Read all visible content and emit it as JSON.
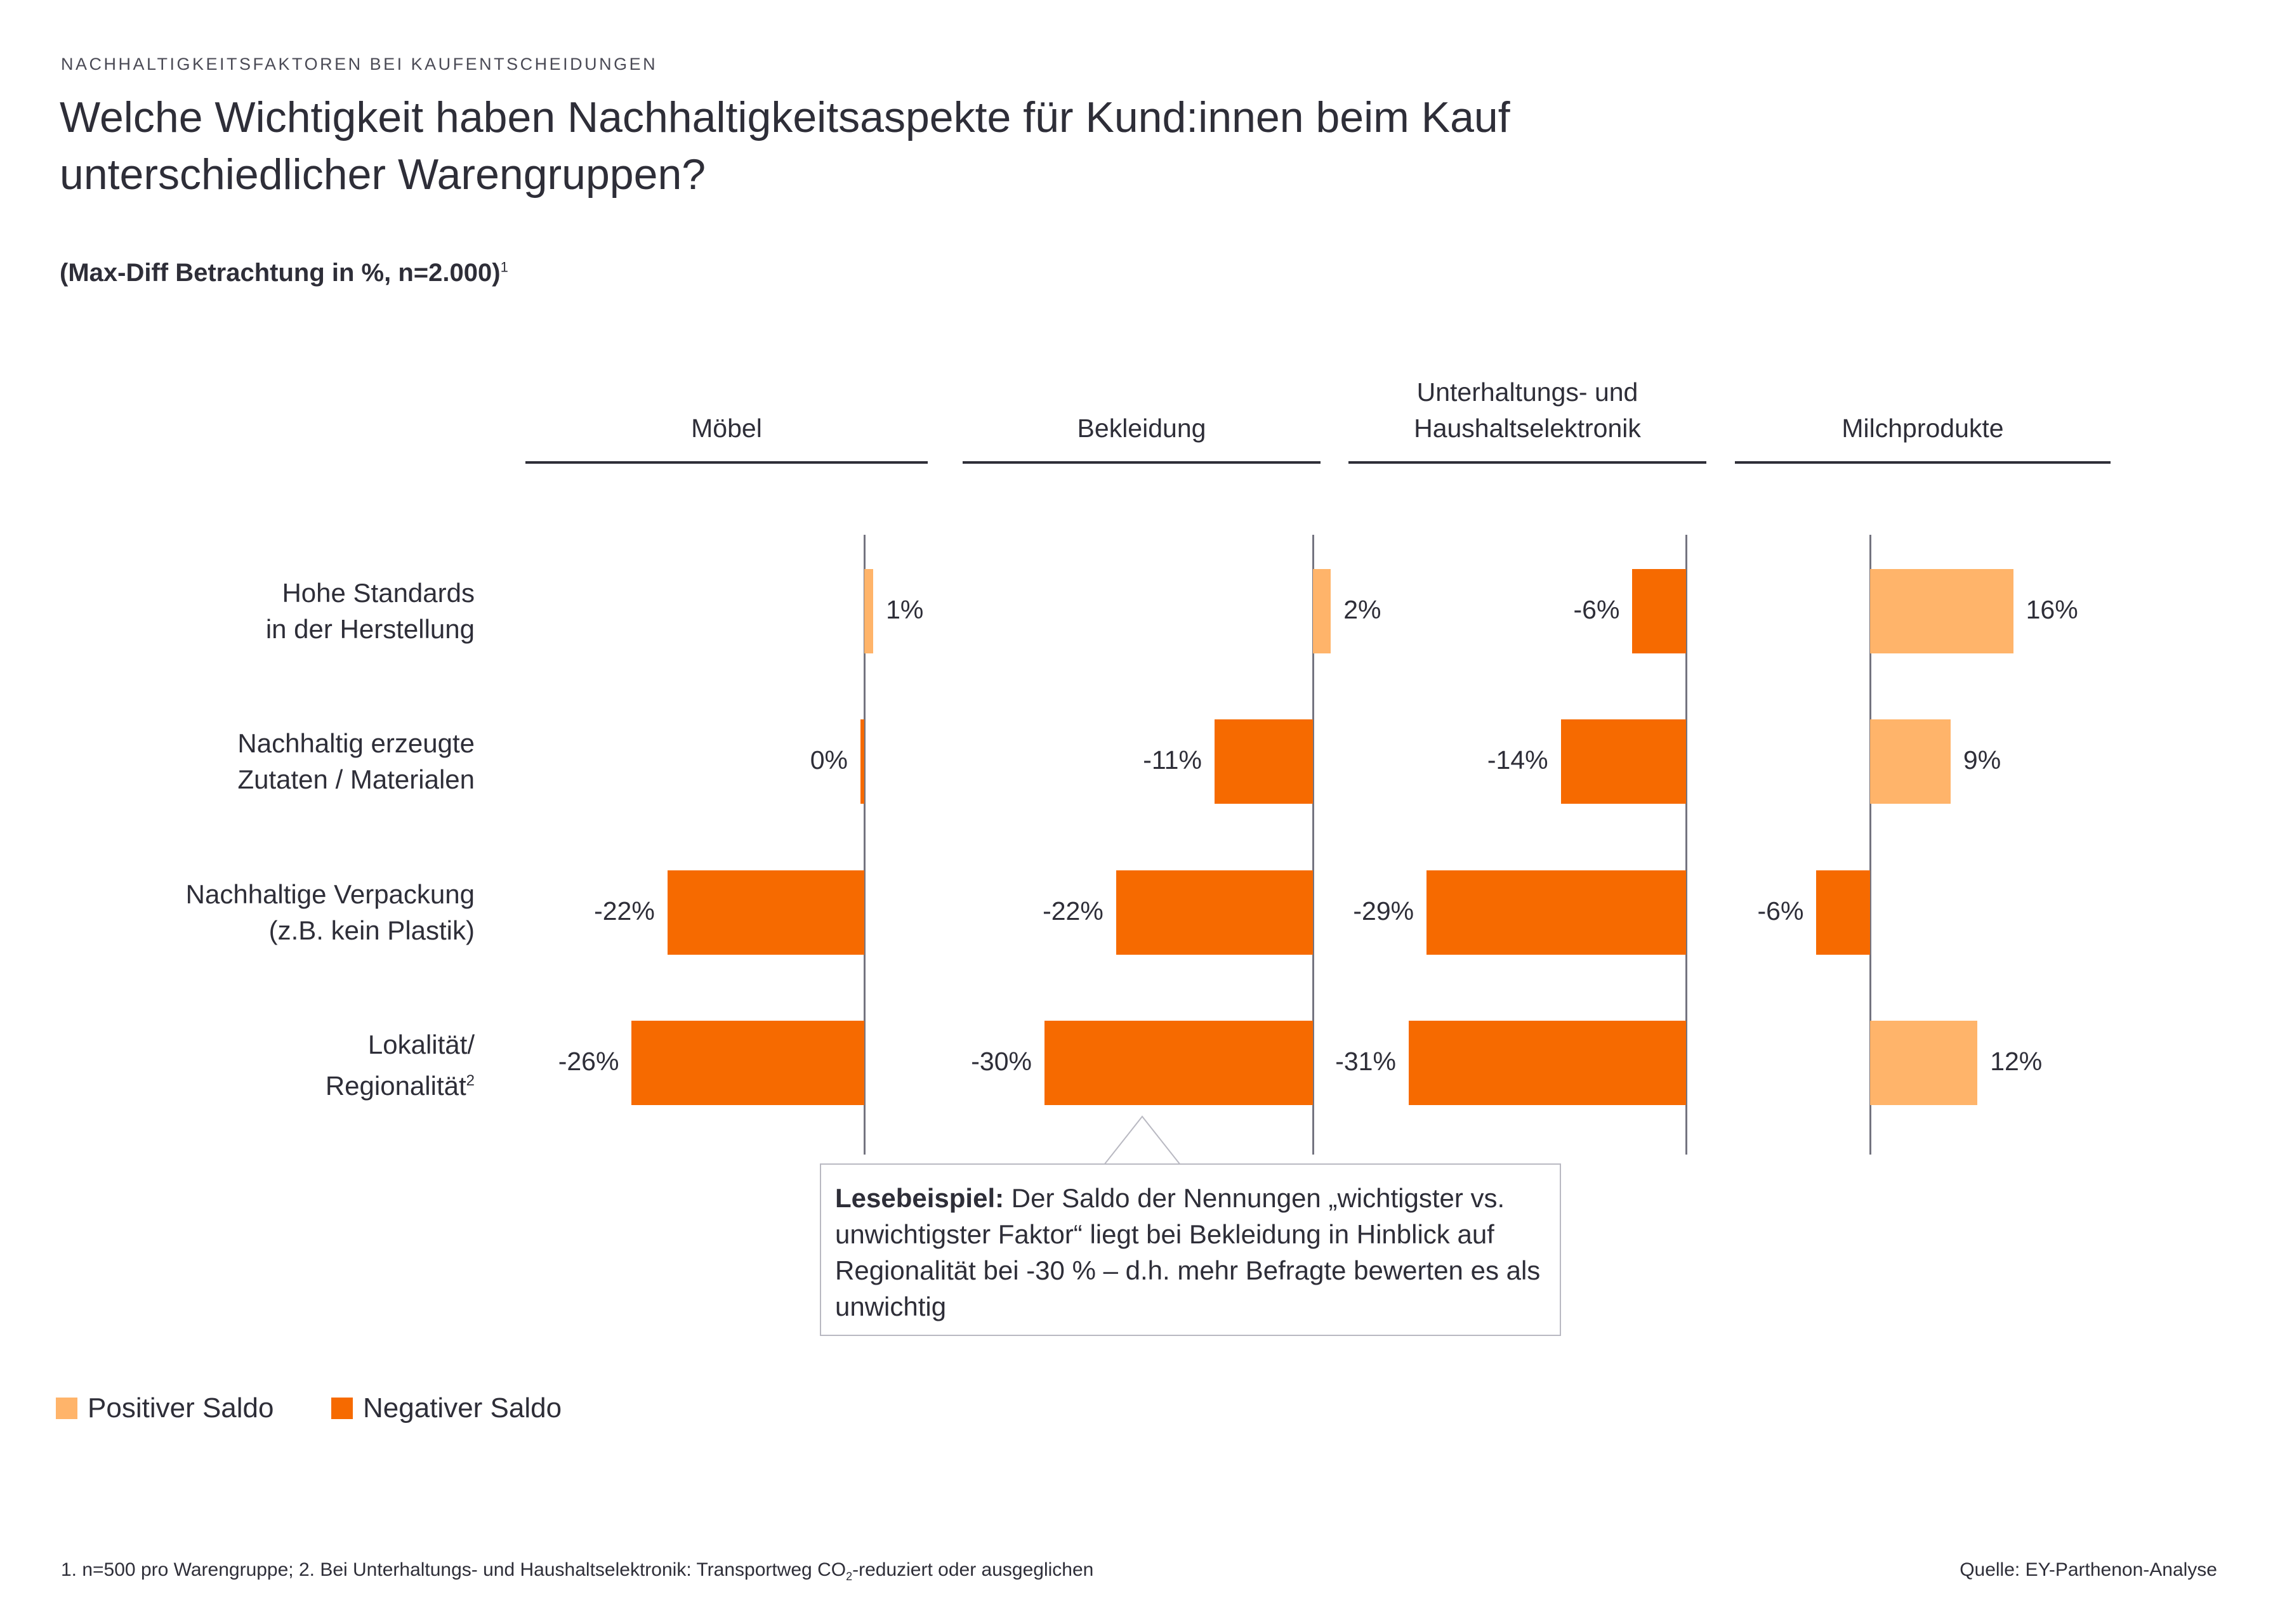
{
  "header": {
    "eyebrow": "NACHHALTIGKEITSFAKTOREN BEI KAUFENTSCHEIDUNGEN",
    "title": "Welche Wichtigkeit haben Nachhaltigkeitsaspekte für Kund:innen beim Kauf unterschiedlicher Warengruppen?",
    "subtitle": "(Max-Diff Betrachtung in %, n=2.000)",
    "subtitle_sup": "1"
  },
  "colors": {
    "positive": "#FFB46A",
    "negative": "#F66A00"
  },
  "chart_data": {
    "type": "bar",
    "orientation": "horizontal",
    "title": "Welche Wichtigkeit haben Nachhaltigkeitsaspekte für Kund:innen beim Kauf unterschiedlicher Warengruppen?",
    "unit": "%",
    "categories": [
      {
        "label": "Hohe Standards in der Herstellung",
        "lines": [
          "Hohe Standards",
          "in der Herstellung"
        ],
        "sup": ""
      },
      {
        "label": "Nachhaltig erzeugte Zutaten / Materialen",
        "lines": [
          "Nachhaltig erzeugte",
          "Zutaten / Materialen"
        ],
        "sup": ""
      },
      {
        "label": "Nachhaltige Verpackung (z.B. kein Plastik)",
        "lines": [
          "Nachhaltige Verpackung",
          "(z.B. kein Plastik)"
        ],
        "sup": ""
      },
      {
        "label": "Lokalität/ Regionalität",
        "lines": [
          "Lokalität/",
          "Regionalität"
        ],
        "sup": "2"
      }
    ],
    "series": [
      {
        "name": "Möbel",
        "lines": [
          "Möbel"
        ],
        "values": [
          1,
          0,
          -22,
          -26
        ],
        "labels": [
          "1%",
          "0%",
          "-22%",
          "-26%"
        ]
      },
      {
        "name": "Bekleidung",
        "lines": [
          "Bekleidung"
        ],
        "values": [
          2,
          -11,
          -22,
          -30
        ],
        "labels": [
          "2%",
          "-11%",
          "-22%",
          "-30%"
        ]
      },
      {
        "name": "Unterhaltungs- und Haushaltselektronik",
        "lines": [
          "Unterhaltungs- und",
          "Haushaltselektronik"
        ],
        "values": [
          -6,
          -14,
          -29,
          -31
        ],
        "labels": [
          "-6%",
          "-14%",
          "-29%",
          "-31%"
        ]
      },
      {
        "name": "Milchprodukte",
        "lines": [
          "Milchprodukte"
        ],
        "values": [
          16,
          9,
          -6,
          12
        ],
        "labels": [
          "16%",
          "9%",
          "-6%",
          "12%"
        ]
      }
    ],
    "legend": [
      {
        "name": "Positiver Saldo",
        "color": "#FFB46A"
      },
      {
        "name": "Negativer Saldo",
        "color": "#F66A00"
      }
    ]
  },
  "callout": {
    "bold": "Lesebeispiel:",
    "text": " Der Saldo der Nennungen „wichtigster vs. unwichtigster Faktor“ liegt bei Bekleidung in Hinblick auf Regionalität bei -30 % – d.h. mehr Befragte bewerten es als unwichtig"
  },
  "footer": {
    "note_a": "1. n=500 pro Warengruppe; 2. Bei Unterhaltungs- und Haushaltselektronik: Transportweg CO",
    "note_sub": "2",
    "note_b": "-reduziert oder ausgeglichen",
    "source": "Quelle: EY-Parthenon-Analyse"
  }
}
